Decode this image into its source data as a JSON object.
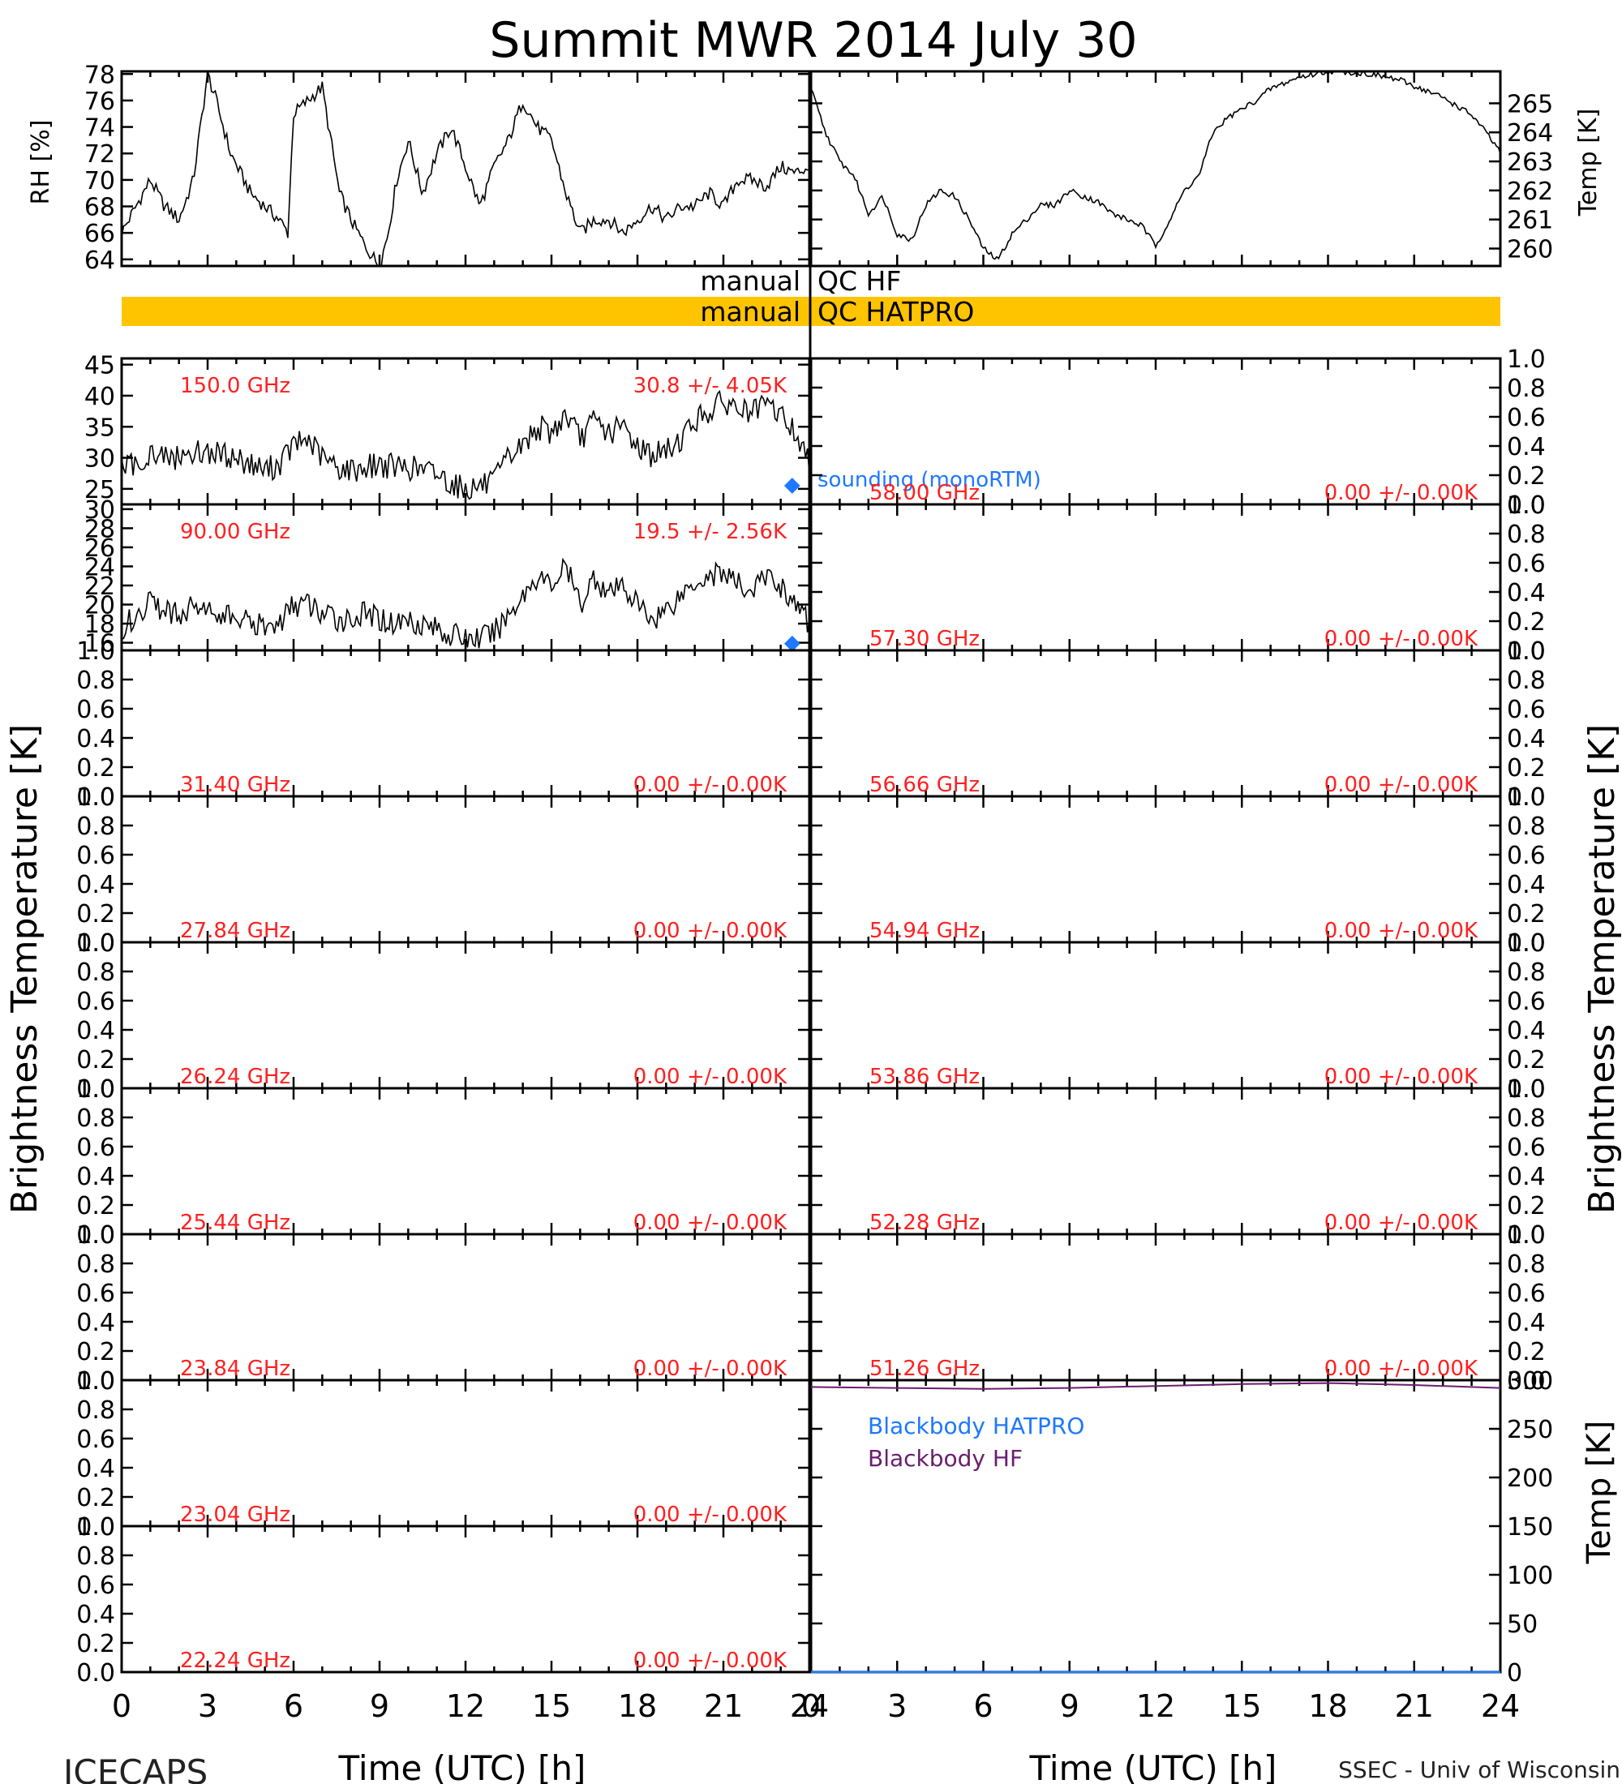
{
  "title": "Summit MWR 2014 July 30",
  "footer": {
    "left": "ICECAPS",
    "right": "SSEC - Univ of Wisconsin"
  },
  "y_labels": {
    "left": "Brightness Temperature [K]",
    "right": "Brightness Temperature [K]",
    "rh": "RH [%]",
    "temp_top": "Temp [K]",
    "temp_bottom": "Temp [K]"
  },
  "x_label": "Time (UTC) [h]",
  "qc_bars": {
    "hf": {
      "left": "manual",
      "right": "QC HF",
      "fill": null
    },
    "hatpro": {
      "left": "manual",
      "right": "QC HATPRO",
      "fill": "#FFC400"
    }
  },
  "colors": {
    "annotation": "#FF2020",
    "sounding": "#1E78FF",
    "bb_hatpro": "#1E78FF",
    "bb_hf": "#6A1E6E",
    "series": "#000000"
  },
  "chart_data": [
    {
      "id": "rh",
      "type": "line",
      "ylabel": "RH [%]",
      "xlim": [
        0,
        24
      ],
      "ylim": [
        63.5,
        78.2
      ],
      "yticks": [
        64,
        66,
        68,
        70,
        72,
        74,
        76,
        78
      ],
      "xticks": [
        0,
        3,
        6,
        9,
        12,
        15,
        18,
        21,
        24
      ],
      "series": [
        {
          "x": [
            0,
            0.5,
            1,
            1.5,
            2,
            2.5,
            3,
            3.3,
            3.8,
            4.5,
            5,
            5.5,
            5.8,
            6,
            6.5,
            7,
            7.3,
            7.6,
            8,
            8.5,
            9,
            9.3,
            9.6,
            10,
            10.5,
            11,
            11.5,
            12,
            12.5,
            13,
            13.5,
            14,
            14.5,
            15,
            15.5,
            16,
            16.5,
            17,
            17.5,
            18,
            18.5,
            19,
            19.5,
            20,
            20.5,
            21,
            21.5,
            22,
            22.5,
            23,
            23.5,
            24
          ],
          "y": [
            66,
            68,
            70,
            68,
            67,
            70,
            78,
            76,
            72,
            69,
            68,
            67,
            66,
            75,
            76,
            77,
            73,
            69,
            67,
            65,
            63.5,
            66,
            70,
            73,
            69,
            72,
            74,
            71,
            68,
            71,
            73,
            76,
            74,
            73,
            69,
            66,
            67,
            67,
            66,
            67,
            68,
            67,
            68,
            68,
            69,
            68,
            70,
            70,
            69.5,
            71,
            70.5,
            71
          ]
        }
      ]
    },
    {
      "id": "temp_top",
      "type": "line",
      "ylabel": "Temp [K]",
      "xlim": [
        0,
        24
      ],
      "ylim": [
        259.4,
        266.1
      ],
      "yticks": [
        260,
        261,
        262,
        263,
        264,
        265
      ],
      "xticks": [
        0,
        3,
        6,
        9,
        12,
        15,
        18,
        21,
        24
      ],
      "series": [
        {
          "x": [
            0,
            0.5,
            1,
            1.5,
            2,
            2.5,
            3,
            3.5,
            4,
            4.5,
            5,
            5.5,
            6,
            6.5,
            7,
            7.5,
            8,
            8.5,
            9,
            9.5,
            10,
            10.5,
            11,
            11.5,
            12,
            12.5,
            13,
            13.5,
            14,
            14.5,
            15,
            15.5,
            16,
            16.5,
            17,
            17.5,
            18,
            18.5,
            19,
            19.5,
            20,
            20.5,
            21,
            21.5,
            22,
            22.5,
            23,
            23.5,
            24
          ],
          "y": [
            265.5,
            264,
            263,
            262.5,
            261.2,
            261.8,
            260.5,
            260.3,
            261.5,
            262,
            261.8,
            261,
            260,
            259.6,
            260.5,
            261,
            261.5,
            261.5,
            262,
            261.8,
            261.6,
            261.2,
            261,
            260.8,
            260.1,
            261,
            262,
            262.5,
            264,
            264.5,
            264.8,
            265.1,
            265.5,
            265.7,
            265.9,
            266,
            266.1,
            266.1,
            266.05,
            266,
            265.9,
            265.8,
            265.6,
            265.4,
            265.2,
            264.9,
            264.6,
            264,
            263.3
          ]
        }
      ]
    },
    {
      "id": "tb_150",
      "type": "line",
      "channel": "150.0 GHz",
      "stats": "30.8 +/- 4.05K",
      "xlim": [
        0,
        24
      ],
      "ylim": [
        22.5,
        46
      ],
      "yticks": [
        25,
        30,
        35,
        40,
        45
      ],
      "sounding": {
        "label": "sounding (monoRTM)",
        "x": 23.4,
        "y": 25.5
      },
      "series": [
        {
          "x": [
            0,
            0.5,
            1,
            1.5,
            2,
            2.5,
            3,
            3.5,
            4,
            4.5,
            5,
            5.5,
            6,
            6.5,
            7,
            7.5,
            8,
            8.5,
            9,
            9.5,
            10,
            10.5,
            11,
            11.5,
            12,
            12.5,
            13,
            13.5,
            14,
            14.5,
            15,
            15.5,
            16,
            16.5,
            17,
            17.5,
            18,
            18.5,
            19,
            19.5,
            20,
            20.5,
            21,
            21.5,
            22,
            22.5,
            23,
            23.5,
            24
          ],
          "y": [
            28,
            29,
            31,
            30,
            30,
            31,
            31,
            30.5,
            30,
            29,
            28,
            29,
            32,
            33,
            30,
            28.5,
            28,
            28.5,
            29,
            28.5,
            28.5,
            28,
            27.5,
            26,
            25,
            25.5,
            26,
            30,
            32,
            35,
            34,
            37,
            33,
            36,
            34,
            35,
            32,
            30.5,
            31,
            33,
            36,
            37.5,
            39,
            38,
            37,
            38.5,
            37,
            34,
            29
          ]
        }
      ]
    },
    {
      "id": "tb_90",
      "type": "line",
      "channel": "90.00 GHz",
      "stats": "19.5 +/- 2.56K",
      "xlim": [
        0,
        24
      ],
      "ylim": [
        15.2,
        30.5
      ],
      "yticks": [
        16,
        18,
        20,
        22,
        24,
        26,
        28,
        30
      ],
      "sounding": {
        "x": 23.4,
        "y": 15.9
      },
      "series": [
        {
          "x": [
            0,
            0.5,
            1,
            1.5,
            2,
            2.5,
            3,
            3.5,
            4,
            4.5,
            5,
            5.5,
            6,
            6.5,
            7,
            7.5,
            8,
            8.5,
            9,
            9.5,
            10,
            10.5,
            11,
            11.5,
            12,
            12.5,
            13,
            13.5,
            14,
            14.5,
            15,
            15.5,
            16,
            16.5,
            17,
            17.5,
            18,
            18.5,
            19,
            19.5,
            20,
            20.5,
            21,
            21.5,
            22,
            22.5,
            23,
            23.5,
            24
          ],
          "y": [
            17.5,
            19,
            20,
            19.5,
            19,
            20,
            19.5,
            19,
            18.5,
            18,
            17.5,
            18,
            20,
            20,
            19,
            18.5,
            18.5,
            19,
            18.5,
            18,
            18.5,
            18,
            17.5,
            16.8,
            16.5,
            16.5,
            17,
            19,
            21,
            23,
            22,
            24,
            20,
            23,
            21,
            22,
            20,
            18.5,
            19.5,
            21,
            22.5,
            23,
            23.5,
            22,
            21.5,
            23,
            22,
            20,
            18
          ]
        }
      ]
    },
    {
      "id": "tb_31.40",
      "type": "line",
      "channel": "31.40 GHz",
      "stats": "0.00 +/- 0.00K",
      "ylim": [
        0,
        1
      ],
      "yticks": [
        0.0,
        0.2,
        0.4,
        0.6,
        0.8,
        1.0
      ]
    },
    {
      "id": "tb_27.84",
      "type": "line",
      "channel": "27.84 GHz",
      "stats": "0.00 +/- 0.00K",
      "ylim": [
        0,
        1
      ],
      "yticks": [
        0.0,
        0.2,
        0.4,
        0.6,
        0.8,
        1.0
      ]
    },
    {
      "id": "tb_26.24",
      "type": "line",
      "channel": "26.24 GHz",
      "stats": "0.00 +/- 0.00K",
      "ylim": [
        0,
        1
      ],
      "yticks": [
        0.0,
        0.2,
        0.4,
        0.6,
        0.8,
        1.0
      ]
    },
    {
      "id": "tb_25.44",
      "type": "line",
      "channel": "25.44 GHz",
      "stats": "0.00 +/- 0.00K",
      "ylim": [
        0,
        1
      ],
      "yticks": [
        0.0,
        0.2,
        0.4,
        0.6,
        0.8,
        1.0
      ]
    },
    {
      "id": "tb_23.84",
      "type": "line",
      "channel": "23.84 GHz",
      "stats": "0.00 +/- 0.00K",
      "ylim": [
        0,
        1
      ],
      "yticks": [
        0.0,
        0.2,
        0.4,
        0.6,
        0.8,
        1.0
      ]
    },
    {
      "id": "tb_23.04",
      "type": "line",
      "channel": "23.04 GHz",
      "stats": "0.00 +/- 0.00K",
      "ylim": [
        0,
        1
      ],
      "yticks": [
        0.0,
        0.2,
        0.4,
        0.6,
        0.8,
        1.0
      ]
    },
    {
      "id": "tb_22.24",
      "type": "line",
      "channel": "22.24 GHz",
      "stats": "0.00 +/- 0.00K",
      "ylim": [
        0,
        1
      ],
      "yticks": [
        0.0,
        0.2,
        0.4,
        0.6,
        0.8,
        1.0
      ]
    },
    {
      "id": "tb_58.00",
      "type": "line",
      "channel": "58.00 GHz",
      "stats": "0.00 +/- 0.00K",
      "ylim": [
        0,
        1
      ],
      "yticks": [
        0.0,
        0.2,
        0.4,
        0.6,
        0.8,
        1.0
      ]
    },
    {
      "id": "tb_57.30",
      "type": "line",
      "channel": "57.30 GHz",
      "stats": "0.00 +/- 0.00K",
      "ylim": [
        0,
        1
      ],
      "yticks": [
        0.0,
        0.2,
        0.4,
        0.6,
        0.8,
        1.0
      ]
    },
    {
      "id": "tb_56.66",
      "type": "line",
      "channel": "56.66 GHz",
      "stats": "0.00 +/- 0.00K",
      "ylim": [
        0,
        1
      ],
      "yticks": [
        0.0,
        0.2,
        0.4,
        0.6,
        0.8,
        1.0
      ]
    },
    {
      "id": "tb_54.94",
      "type": "line",
      "channel": "54.94 GHz",
      "stats": "0.00 +/- 0.00K",
      "ylim": [
        0,
        1
      ],
      "yticks": [
        0.0,
        0.2,
        0.4,
        0.6,
        0.8,
        1.0
      ]
    },
    {
      "id": "tb_53.86",
      "type": "line",
      "channel": "53.86 GHz",
      "stats": "0.00 +/- 0.00K",
      "ylim": [
        0,
        1
      ],
      "yticks": [
        0.0,
        0.2,
        0.4,
        0.6,
        0.8,
        1.0
      ]
    },
    {
      "id": "tb_52.28",
      "type": "line",
      "channel": "52.28 GHz",
      "stats": "0.00 +/- 0.00K",
      "ylim": [
        0,
        1
      ],
      "yticks": [
        0.0,
        0.2,
        0.4,
        0.6,
        0.8,
        1.0
      ]
    },
    {
      "id": "tb_51.26",
      "type": "line",
      "channel": "51.26 GHz",
      "stats": "0.00 +/- 0.00K",
      "ylim": [
        0,
        1
      ],
      "yticks": [
        0.0,
        0.2,
        0.4,
        0.6,
        0.8,
        1.0
      ]
    },
    {
      "id": "blackbody",
      "type": "line",
      "ylabel": "Temp [K]",
      "xlim": [
        0,
        24
      ],
      "ylim": [
        0,
        300
      ],
      "yticks": [
        0,
        50,
        100,
        150,
        200,
        250,
        300
      ],
      "xticks": [
        0,
        3,
        6,
        9,
        12,
        15,
        18,
        21,
        24
      ],
      "series": [
        {
          "name": "Blackbody HATPRO",
          "x": [
            0,
            24
          ],
          "y": [
            0,
            0
          ]
        },
        {
          "name": "Blackbody HF",
          "x": [
            0,
            3,
            6,
            9,
            12,
            15,
            18,
            21,
            24
          ],
          "y": [
            293,
            292,
            291,
            292,
            294,
            296,
            297,
            295,
            292
          ]
        }
      ]
    }
  ]
}
